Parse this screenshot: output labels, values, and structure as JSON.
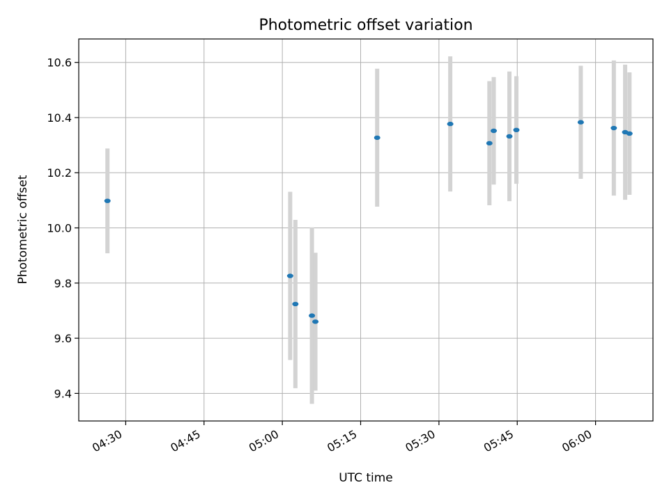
{
  "chart_data": {
    "type": "scatter",
    "title": "Photometric offset variation",
    "xlabel": "UTC time",
    "ylabel": "Photometric offset",
    "x_unit": "UTC time (HH:MM)",
    "xlim": [
      "04:21",
      "06:11"
    ],
    "ylim": [
      9.3,
      10.685
    ],
    "x_ticks": [
      "04:30",
      "04:45",
      "05:00",
      "05:15",
      "05:30",
      "05:45",
      "06:00"
    ],
    "y_ticks": [
      "9.4",
      "9.6",
      "9.8",
      "10.0",
      "10.2",
      "10.4",
      "10.6"
    ],
    "y_tick_values": [
      9.4,
      9.6,
      9.8,
      10.0,
      10.2,
      10.4,
      10.6
    ],
    "grid": true,
    "errorbar_color": "#d3d3d3",
    "marker_color": "#1f77b4",
    "points": [
      {
        "x": "04:26:30",
        "y": 10.098,
        "yerr": 0.19
      },
      {
        "x": "05:01:30",
        "y": 9.826,
        "yerr": 0.305
      },
      {
        "x": "05:02:30",
        "y": 9.724,
        "yerr": 0.305
      },
      {
        "x": "05:05:40",
        "y": 9.682,
        "yerr": 0.32
      },
      {
        "x": "05:06:20",
        "y": 9.66,
        "yerr": 0.25
      },
      {
        "x": "05:18:10",
        "y": 10.327,
        "yerr": 0.25
      },
      {
        "x": "05:32:10",
        "y": 10.377,
        "yerr": 0.245
      },
      {
        "x": "05:39:40",
        "y": 10.307,
        "yerr": 0.225
      },
      {
        "x": "05:40:30",
        "y": 10.352,
        "yerr": 0.195
      },
      {
        "x": "05:43:30",
        "y": 10.332,
        "yerr": 0.235
      },
      {
        "x": "05:44:50",
        "y": 10.355,
        "yerr": 0.195
      },
      {
        "x": "05:57:10",
        "y": 10.383,
        "yerr": 0.205
      },
      {
        "x": "06:03:30",
        "y": 10.362,
        "yerr": 0.245
      },
      {
        "x": "06:05:40",
        "y": 10.347,
        "yerr": 0.245
      },
      {
        "x": "06:06:30",
        "y": 10.342,
        "yerr": 0.222
      }
    ]
  }
}
